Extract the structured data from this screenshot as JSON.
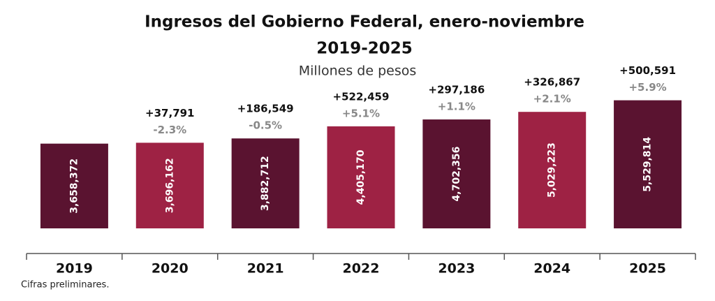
{
  "chart_data": {
    "type": "bar",
    "title": [
      "Ingresos del Gobierno Federal, enero-noviembre",
      "2019-2025"
    ],
    "subtitle": "Millones de pesos",
    "categories": [
      "2019",
      "2020",
      "2021",
      "2022",
      "2023",
      "2024",
      "2025"
    ],
    "values": [
      3658372,
      3696162,
      3882712,
      4405170,
      4702356,
      5029223,
      5529814
    ],
    "value_labels": [
      "3,658,372",
      "3,696,162",
      "3,882,712",
      "4,405,170",
      "4,702,356",
      "5,029,223",
      "5,529,814"
    ],
    "colors": [
      "#5a1330",
      "#9e2244",
      "#5a1330",
      "#9e2244",
      "#5a1330",
      "#9e2244",
      "#5a1330"
    ],
    "increments": [
      null,
      "+37,791",
      "+186,549",
      "+522,459",
      "+297,186",
      "+326,867",
      "+500,591"
    ],
    "growth": [
      null,
      "-2.3%",
      "-0.5%",
      "+5.1%",
      "+1.1%",
      "+2.1%",
      "+5.9%"
    ],
    "ylim": [
      0,
      6000000
    ],
    "note": "Cifras preliminares."
  }
}
